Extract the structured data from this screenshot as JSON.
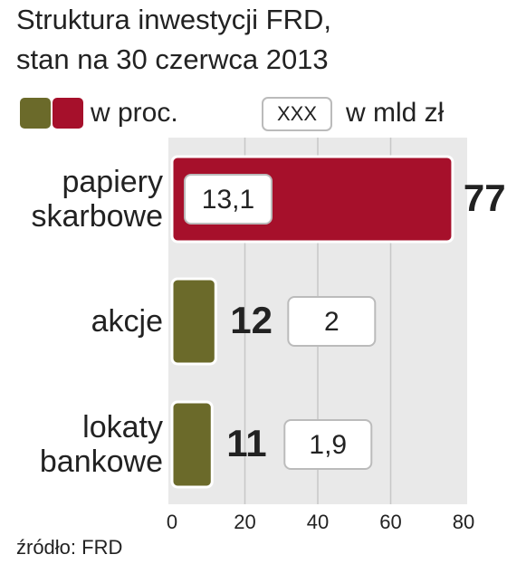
{
  "chart_data": {
    "type": "hbar",
    "title": "Struktura inwestycji FRD,",
    "subtitle": "stan na 30 czerwca 2013",
    "categories": [
      "papiery skarbowe",
      "akcje",
      "lokaty bankowe"
    ],
    "series": [
      {
        "name": "w proc.",
        "colors": [
          "#a6102b",
          "#6b6a2a",
          "#6b6a2a"
        ],
        "values": [
          77,
          12,
          11
        ]
      },
      {
        "name": "w mld zł",
        "legend_symbol": "XXX",
        "values": [
          13.1,
          2,
          1.9
        ],
        "value_labels": [
          "13,1",
          "2",
          "1,9"
        ]
      }
    ],
    "xlim": [
      0,
      80
    ],
    "xticks": [
      0,
      20,
      40,
      60,
      80
    ],
    "grid": true,
    "source": "źródło: FRD"
  }
}
